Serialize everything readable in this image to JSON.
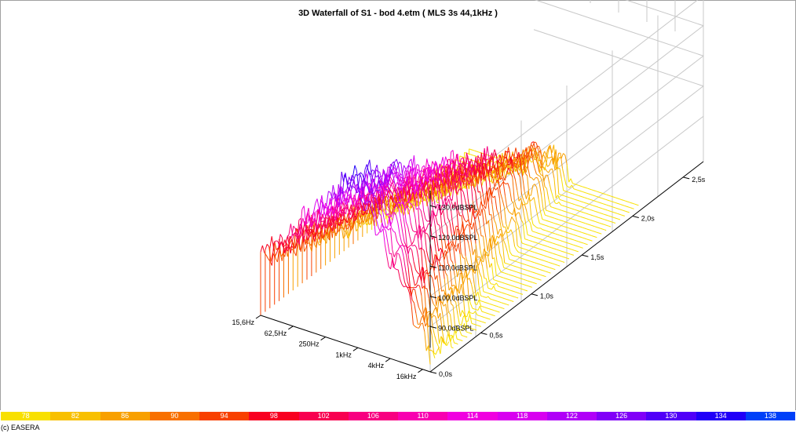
{
  "chart_data": {
    "type": "waterfall3d",
    "title": "3D Waterfall of S1 - bod 4.etm ( MLS 3s 44,1kHz )",
    "frequency_ticks": [
      "15,6Hz",
      "62,5Hz",
      "250Hz",
      "1kHz",
      "4kHz",
      "16kHz"
    ],
    "time_ticks": [
      "0,0s",
      "0,5s",
      "1,0s",
      "1,5s",
      "2,0s",
      "2,5s"
    ],
    "level_ticks": [
      "90,0dBSPL",
      "100,0dBSPL",
      "110,0dBSPL",
      "120,0dBSPL",
      "130,0dBSPL"
    ],
    "frequency_range_hz": [
      15.6,
      22050
    ],
    "time_range_s": [
      0,
      2.7
    ],
    "level_range_dbspl": [
      75,
      135
    ],
    "grid": true,
    "color_scale": {
      "values": [
        "78",
        "82",
        "86",
        "90",
        "94",
        "98",
        "102",
        "106",
        "110",
        "114",
        "118",
        "122",
        "126",
        "130",
        "134",
        "138"
      ],
      "colors": [
        "#f8e000",
        "#f8c000",
        "#f8a000",
        "#f87000",
        "#f84000",
        "#f80020",
        "#f80050",
        "#f80080",
        "#f800b0",
        "#f000e0",
        "#d800f0",
        "#b000f8",
        "#8000f8",
        "#5000f8",
        "#2000f8",
        "#0040f8"
      ]
    }
  },
  "footer": {
    "text": "(c) EASERA"
  }
}
